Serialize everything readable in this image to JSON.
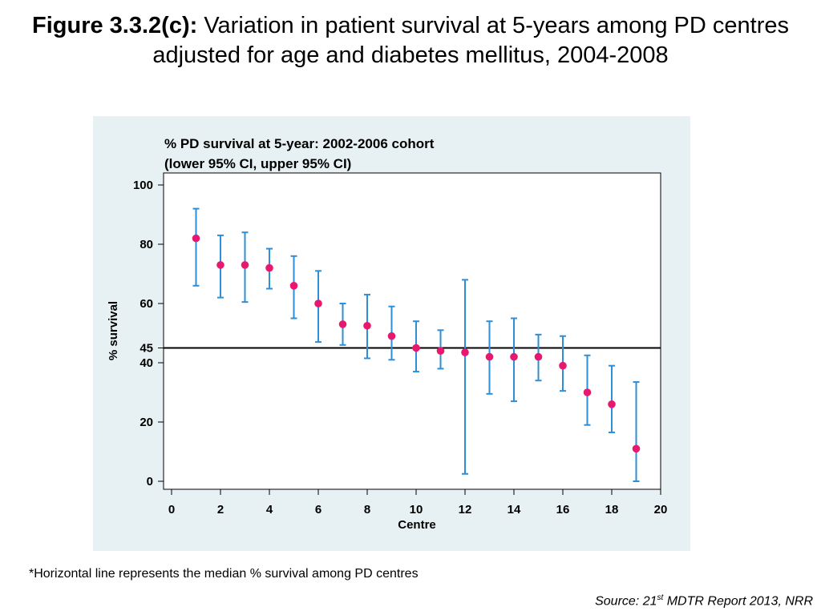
{
  "title": {
    "label": "Figure 3.3.2(c):",
    "text": "Variation in patient survival at 5-years among PD centres adjusted for age and diabetes mellitus, 2004-2008"
  },
  "chart_data": {
    "type": "scatter",
    "title_line1": "% PD survival at 5-year: 2002-2006 cohort",
    "title_line2": "(lower 95% CI, upper 95% CI)",
    "xlabel": "Centre",
    "ylabel": "% survival",
    "xlim": [
      0,
      20
    ],
    "ylim": [
      0,
      100
    ],
    "xticks": [
      0,
      2,
      4,
      6,
      8,
      10,
      12,
      14,
      16,
      18,
      20
    ],
    "yticks": [
      0,
      20,
      40,
      60,
      80,
      100
    ],
    "reference_line": {
      "y": 45,
      "label": "45"
    },
    "point_color": "#e8186e",
    "errorbar_color": "#2e8fd6",
    "grid": false,
    "points": [
      {
        "x": 1,
        "y": 82,
        "lower": 66,
        "upper": 92
      },
      {
        "x": 2,
        "y": 73,
        "lower": 62,
        "upper": 83
      },
      {
        "x": 3,
        "y": 73,
        "lower": 60.5,
        "upper": 84
      },
      {
        "x": 4,
        "y": 72,
        "lower": 65,
        "upper": 78.5
      },
      {
        "x": 5,
        "y": 66,
        "lower": 55,
        "upper": 76
      },
      {
        "x": 6,
        "y": 60,
        "lower": 47,
        "upper": 71
      },
      {
        "x": 7,
        "y": 53,
        "lower": 46,
        "upper": 60
      },
      {
        "x": 8,
        "y": 52.5,
        "lower": 41.5,
        "upper": 63
      },
      {
        "x": 9,
        "y": 49,
        "lower": 41,
        "upper": 59
      },
      {
        "x": 10,
        "y": 45,
        "lower": 37,
        "upper": 54
      },
      {
        "x": 11,
        "y": 44,
        "lower": 38,
        "upper": 51
      },
      {
        "x": 12,
        "y": 43.5,
        "lower": 2.5,
        "upper": 68
      },
      {
        "x": 13,
        "y": 42,
        "lower": 29.5,
        "upper": 54
      },
      {
        "x": 14,
        "y": 42,
        "lower": 27,
        "upper": 55
      },
      {
        "x": 15,
        "y": 42,
        "lower": 34,
        "upper": 49.5
      },
      {
        "x": 16,
        "y": 39,
        "lower": 30.5,
        "upper": 49
      },
      {
        "x": 17,
        "y": 30,
        "lower": 19,
        "upper": 42.5
      },
      {
        "x": 18,
        "y": 26,
        "lower": 16.5,
        "upper": 39
      },
      {
        "x": 19,
        "y": 11,
        "lower": 0,
        "upper": 33.5
      }
    ]
  },
  "footnote": "*Horizontal line represents the median % survival among PD centres",
  "source": {
    "prefix": "Source: 21",
    "sup": "st",
    "suffix": " MDTR Report 2013, NRR"
  }
}
